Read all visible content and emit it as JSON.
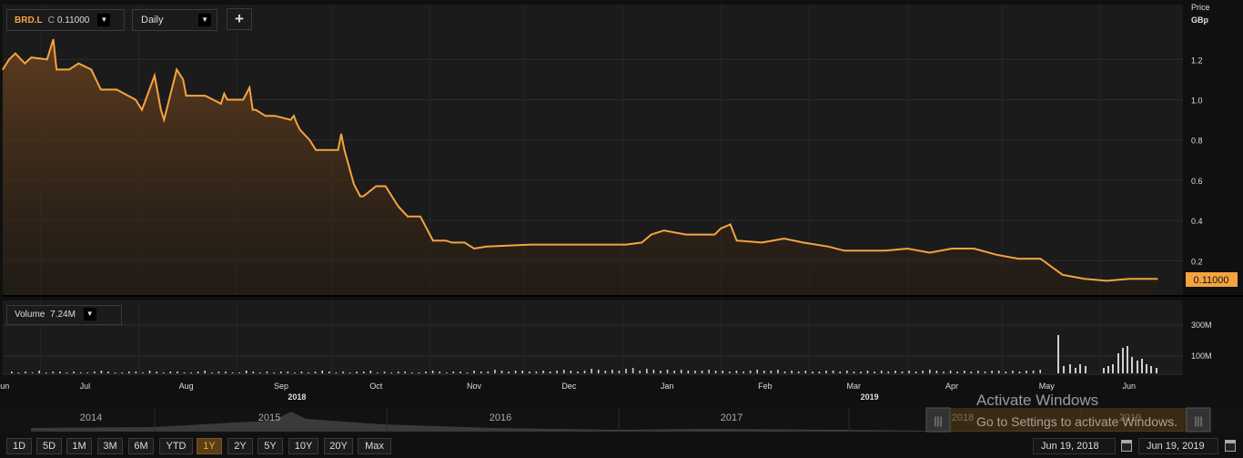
{
  "toolbar": {
    "symbol": "BRD.L",
    "close_prefix": "C",
    "close_value": "0.11000",
    "interval": "Daily",
    "add_label": "+"
  },
  "price_axis": {
    "title": "Price",
    "unit": "GBp",
    "ticks": [
      "1.2",
      "1.0",
      "0.8",
      "0.6",
      "0.4",
      "0.2"
    ],
    "last_value_label": "0.11000"
  },
  "volume_panel": {
    "label": "Volume",
    "value": "7.24M",
    "ticks": [
      "300M",
      "100M"
    ]
  },
  "x_axis": {
    "months": [
      "Jun",
      "Jul",
      "Aug",
      "Sep",
      "Oct",
      "Nov",
      "Dec",
      "Jan",
      "Feb",
      "Mar",
      "Apr",
      "May",
      "Jun"
    ],
    "years": [
      "2018",
      "2019"
    ]
  },
  "navigator": {
    "years": [
      "2014",
      "2015",
      "2016",
      "2017",
      "2018",
      "2019"
    ]
  },
  "range_buttons": [
    {
      "label": "1D",
      "active": false
    },
    {
      "label": "5D",
      "active": false
    },
    {
      "label": "1M",
      "active": false
    },
    {
      "label": "3M",
      "active": false
    },
    {
      "label": "6M",
      "active": false
    },
    {
      "label": "YTD",
      "active": false
    },
    {
      "label": "1Y",
      "active": true
    },
    {
      "label": "2Y",
      "active": false
    },
    {
      "label": "5Y",
      "active": false
    },
    {
      "label": "10Y",
      "active": false
    },
    {
      "label": "20Y",
      "active": false
    },
    {
      "label": "Max",
      "active": false
    }
  ],
  "date_range": {
    "from": "Jun 19, 2018",
    "to": "Jun 19, 2019"
  },
  "watermark": {
    "line1": "Activate Windows",
    "line2": "Go to Settings to activate Windows."
  },
  "colors": {
    "price_line": "#f4a340",
    "background": "#101010",
    "volume_bars": "#cfcfcf"
  },
  "chart_data": {
    "type": "line",
    "title": "",
    "xlabel": "",
    "ylabel": "Price GBp",
    "ylim": [
      0.0,
      1.4
    ],
    "x_range": [
      "2018-06-19",
      "2019-06-19"
    ],
    "x": [
      "2018-06-19",
      "2018-06-21",
      "2018-06-23",
      "2018-06-26",
      "2018-06-28",
      "2018-07-03",
      "2018-07-05",
      "2018-07-06",
      "2018-07-10",
      "2018-07-13",
      "2018-07-17",
      "2018-07-20",
      "2018-07-25",
      "2018-07-31",
      "2018-08-02",
      "2018-08-06",
      "2018-08-08",
      "2018-08-09",
      "2018-08-13",
      "2018-08-15",
      "2018-08-16",
      "2018-08-22",
      "2018-08-27",
      "2018-08-28",
      "2018-08-29",
      "2018-09-03",
      "2018-09-05",
      "2018-09-06",
      "2018-09-07",
      "2018-09-10",
      "2018-09-13",
      "2018-09-18",
      "2018-09-19",
      "2018-09-20",
      "2018-09-21",
      "2018-09-24",
      "2018-09-26",
      "2018-09-27",
      "2018-10-03",
      "2018-10-04",
      "2018-10-05",
      "2018-10-08",
      "2018-10-10",
      "2018-10-11",
      "2018-10-15",
      "2018-10-18",
      "2018-10-22",
      "2018-10-25",
      "2018-10-29",
      "2018-11-01",
      "2018-11-02",
      "2018-11-06",
      "2018-11-08",
      "2018-11-12",
      "2018-11-15",
      "2018-11-19",
      "2018-12-03",
      "2018-12-20",
      "2019-01-02",
      "2019-01-07",
      "2019-01-10",
      "2019-01-14",
      "2019-01-21",
      "2019-01-28",
      "2019-01-30",
      "2019-02-01",
      "2019-02-04",
      "2019-02-06",
      "2019-02-14",
      "2019-02-21",
      "2019-02-27",
      "2019-03-07",
      "2019-03-12",
      "2019-03-25",
      "2019-04-01",
      "2019-04-08",
      "2019-04-15",
      "2019-04-22",
      "2019-04-29",
      "2019-05-06",
      "2019-05-09",
      "2019-05-13",
      "2019-05-20",
      "2019-05-27",
      "2019-06-03",
      "2019-06-10",
      "2019-06-17",
      "2019-06-19"
    ],
    "values": [
      1.15,
      1.2,
      1.23,
      1.18,
      1.21,
      1.2,
      1.3,
      1.15,
      1.15,
      1.18,
      1.15,
      1.05,
      1.05,
      1.0,
      0.95,
      1.12,
      0.95,
      0.9,
      1.15,
      1.1,
      1.02,
      1.02,
      0.98,
      1.03,
      1.0,
      1.0,
      1.06,
      0.95,
      0.95,
      0.92,
      0.92,
      0.9,
      0.92,
      0.88,
      0.85,
      0.8,
      0.75,
      0.75,
      0.75,
      0.83,
      0.75,
      0.58,
      0.52,
      0.52,
      0.57,
      0.57,
      0.47,
      0.42,
      0.42,
      0.33,
      0.3,
      0.3,
      0.29,
      0.29,
      0.26,
      0.27,
      0.28,
      0.28,
      0.28,
      0.29,
      0.33,
      0.35,
      0.33,
      0.33,
      0.33,
      0.36,
      0.38,
      0.3,
      0.29,
      0.31,
      0.29,
      0.27,
      0.25,
      0.25,
      0.26,
      0.24,
      0.26,
      0.26,
      0.23,
      0.21,
      0.21,
      0.21,
      0.13,
      0.11,
      0.1,
      0.11,
      0.11,
      0.11
    ]
  }
}
